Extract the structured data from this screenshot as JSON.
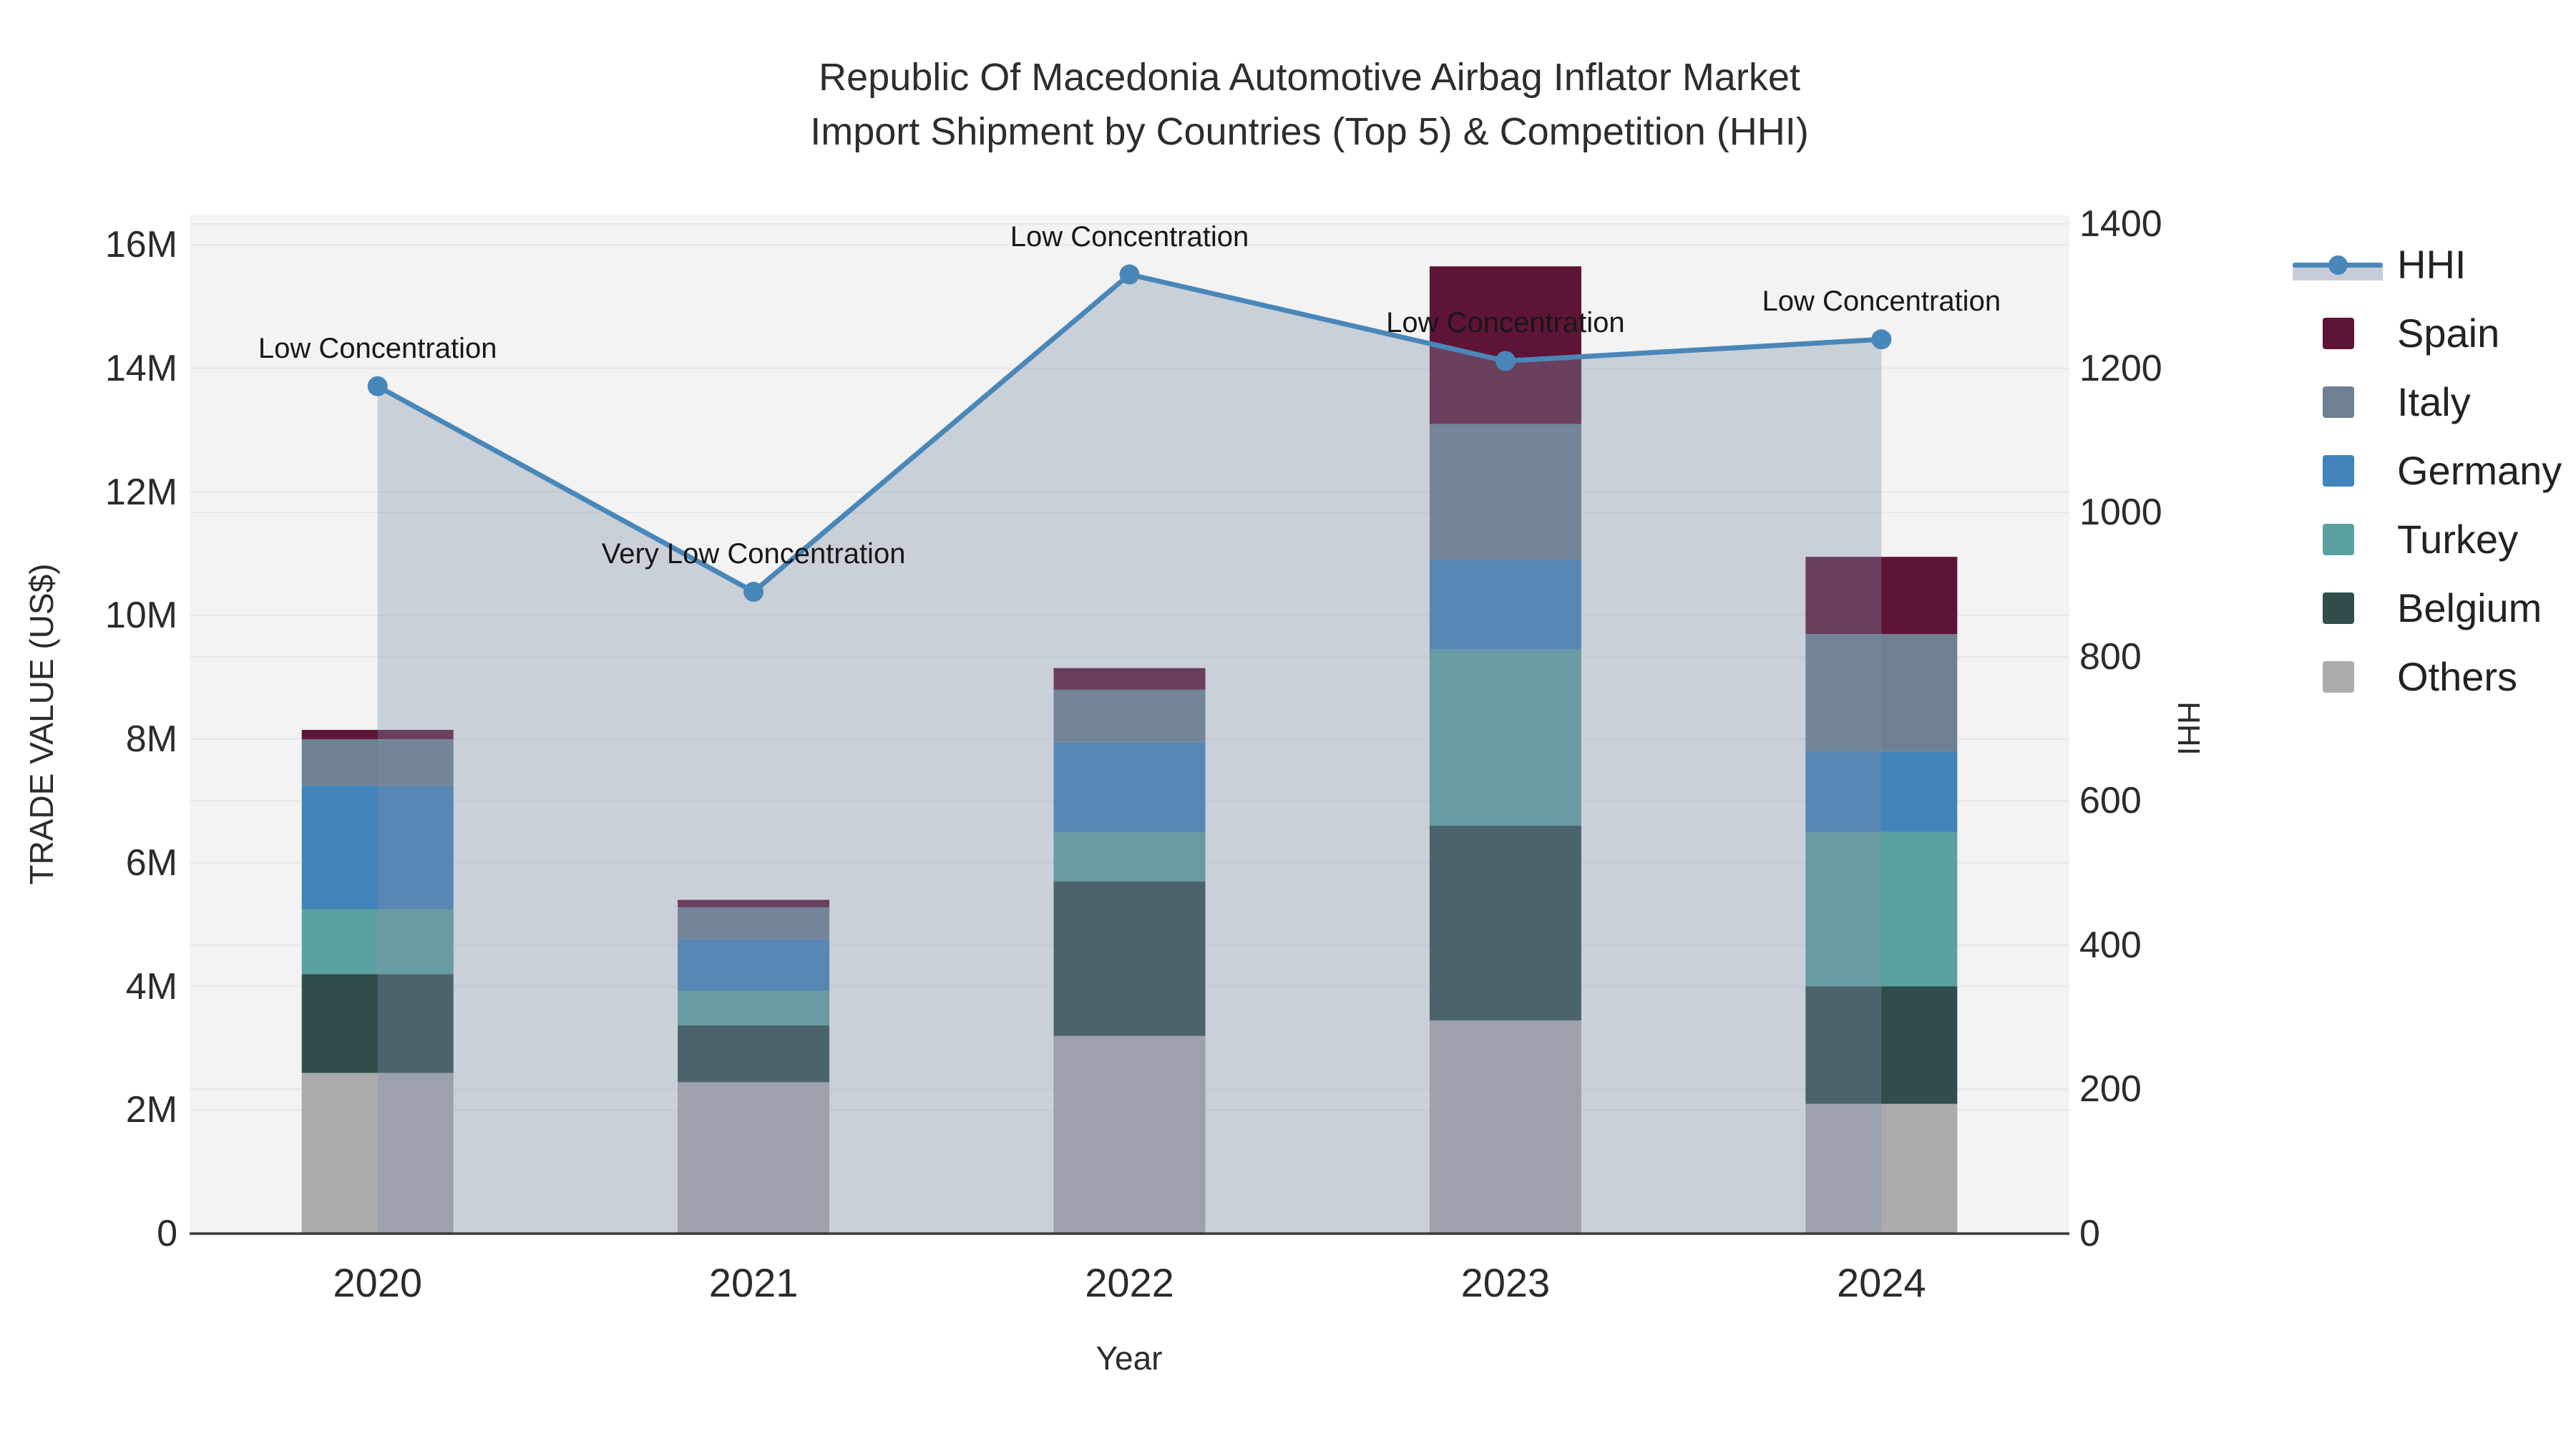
{
  "title": {
    "line1": "Republic Of Macedonia Automotive Airbag Inflator Market",
    "line2": "Import Shipment by Countries (Top 5) & Competition (HHI)"
  },
  "axes": {
    "x_title": "Year",
    "y_left_title": "TRADE VALUE (US$)",
    "y_right_title": "HHI",
    "y_left_ticks": [
      "0",
      "2M",
      "4M",
      "6M",
      "8M",
      "10M",
      "12M",
      "14M",
      "16M"
    ],
    "y_right_ticks": [
      "0",
      "200",
      "400",
      "600",
      "800",
      "1000",
      "1200",
      "1400"
    ]
  },
  "colors": {
    "plot_bg": "#f2f3f2",
    "grid": "#e6e7e9",
    "axis_line": "#38393a",
    "hhi_line": "#4a87b9",
    "hhi_fill": "rgba(128,142,170,0.35)",
    "legend_band": "#c6cdd9"
  },
  "legend": {
    "items": [
      {
        "label": "HHI",
        "type": "line",
        "color": "#4a87b9"
      },
      {
        "label": "Spain",
        "type": "swatch",
        "color": "#5e1436"
      },
      {
        "label": "Italy",
        "type": "swatch",
        "color": "#6e8092"
      },
      {
        "label": "Germany",
        "type": "swatch",
        "color": "#4183bb"
      },
      {
        "label": "Turkey",
        "type": "swatch",
        "color": "#5ca1a1"
      },
      {
        "label": "Belgium",
        "type": "swatch",
        "color": "#2e4d4b"
      },
      {
        "label": "Others",
        "type": "swatch",
        "color": "#ababad"
      }
    ]
  },
  "chart_data": {
    "type": "bar+line",
    "categories": [
      "2020",
      "2021",
      "2022",
      "2023",
      "2024"
    ],
    "bar_value_unit": "million US$",
    "stack_order": [
      "Others",
      "Belgium",
      "Turkey",
      "Germany",
      "Italy",
      "Spain"
    ],
    "series": [
      {
        "name": "Spain",
        "color": "#5e1436",
        "values": [
          0.15,
          0.12,
          0.35,
          2.55,
          1.25
        ]
      },
      {
        "name": "Italy",
        "color": "#6e8092",
        "values": [
          0.75,
          0.52,
          0.85,
          2.2,
          1.9
        ]
      },
      {
        "name": "Germany",
        "color": "#4183bb",
        "values": [
          2.0,
          0.83,
          1.45,
          1.45,
          1.3
        ]
      },
      {
        "name": "Turkey",
        "color": "#5ca1a1",
        "values": [
          1.05,
          0.56,
          0.8,
          2.85,
          2.5
        ]
      },
      {
        "name": "Belgium",
        "color": "#2e4d4b",
        "values": [
          1.6,
          0.92,
          2.5,
          3.15,
          1.9
        ]
      },
      {
        "name": "Others",
        "color": "#ababad",
        "values": [
          2.6,
          2.45,
          3.2,
          3.45,
          2.1
        ]
      }
    ],
    "bar_totals": [
      8.15,
      5.4,
      9.15,
      15.65,
      10.95
    ],
    "line_series": {
      "name": "HHI",
      "axis": "right",
      "values": [
        1175,
        890,
        1330,
        1210,
        1240
      ]
    },
    "annotations": [
      {
        "x_index": 0,
        "text": "Low Concentration"
      },
      {
        "x_index": 1,
        "text": "Very Low Concentration"
      },
      {
        "x_index": 2,
        "text": "Low Concentration"
      },
      {
        "x_index": 3,
        "text": "Low Concentration"
      },
      {
        "x_index": 4,
        "text": "Low Concentration"
      }
    ],
    "xlabel": "Year",
    "ylabel_left": "TRADE VALUE (US$)",
    "ylabel_right": "HHI",
    "ylim_left": [
      0,
      16.5
    ],
    "ylim_right": [
      0,
      1410
    ],
    "grid": true,
    "legend_position": "right"
  }
}
